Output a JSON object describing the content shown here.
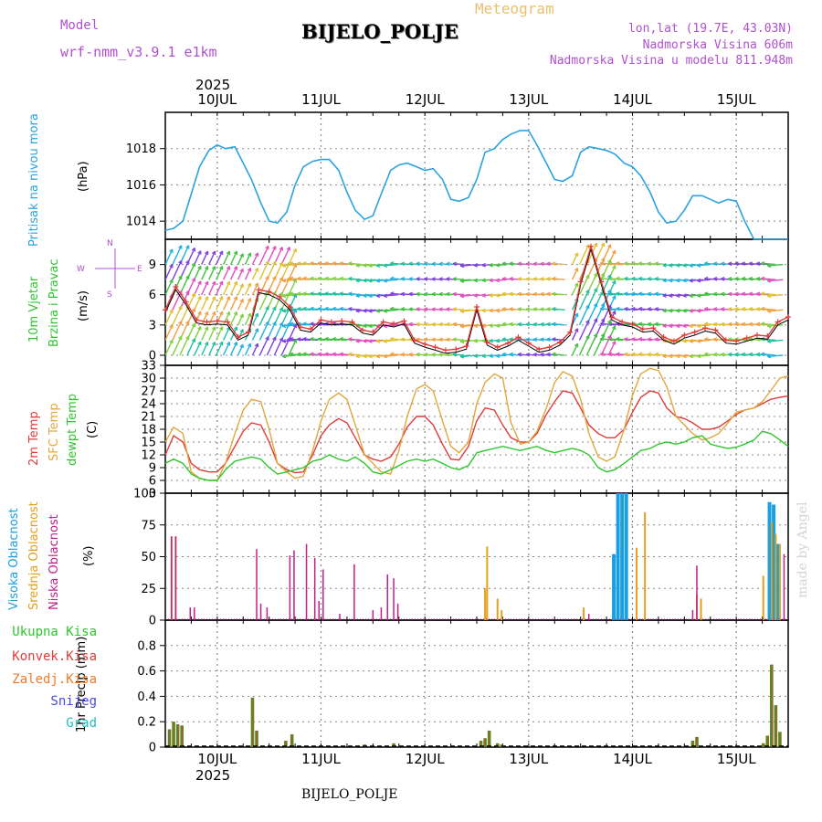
{
  "header": {
    "model_label": "Model",
    "model_name": "wrf-nmm_v3.9.1 e1km",
    "title": "BIJELO_POLJE",
    "meteogram": "Meteogram",
    "lonlat": "lon,lat (19.7E, 43.03N)",
    "altitude": "Nadmorska Visina 606m",
    "altitude_model": "Nadmorska Visina u modelu 811.948m",
    "footer": "BIJELO_POLJE",
    "watermark": "made by Angel"
  },
  "colors": {
    "pressure": "#2aa3e0",
    "wind_speed": "#e03c3c",
    "wind_black": "#000000",
    "t2m": "#e03c3c",
    "tsfc": "#e0a83c",
    "dewpt": "#2ec62e",
    "cloud_high": "#1aa0e0",
    "cloud_mid": "#e0a020",
    "cloud_low": "#c0208a",
    "precip_total": "#2ec62e",
    "precip_conv": "#e03c3c",
    "precip_frz": "#f07a2a",
    "precip_snow": "#4a4ae0",
    "precip_hail": "#20c0c0",
    "model_text": "#b050d0",
    "meteogram_text": "#e8c070",
    "grid": "#888888"
  },
  "chart_data": [
    {
      "type": "line",
      "panel": "pressure",
      "ylabel_lines": [
        "Pritisak na nivou mora",
        "(hPa)"
      ],
      "ylim": [
        1013,
        1020
      ],
      "yticks": [
        1014,
        1016,
        1018
      ],
      "x_days": [
        9.5,
        9.58,
        9.67,
        9.75,
        9.83,
        9.92,
        10.0,
        10.08,
        10.17,
        10.25,
        10.33,
        10.42,
        10.5,
        10.58,
        10.67,
        10.75,
        10.83,
        10.92,
        11.0,
        11.08,
        11.17,
        11.25,
        11.33,
        11.42,
        11.5,
        11.58,
        11.67,
        11.75,
        11.83,
        11.92,
        12.0,
        12.08,
        12.17,
        12.25,
        12.33,
        12.42,
        12.5,
        12.58,
        12.67,
        12.75,
        12.83,
        12.92,
        13.0,
        13.08,
        13.17,
        13.25,
        13.33,
        13.42,
        13.5,
        13.58,
        13.67,
        13.75,
        13.83,
        13.92,
        14.0,
        14.08,
        14.17,
        14.25,
        14.33,
        14.42,
        14.5,
        14.58,
        14.67,
        14.75,
        14.83,
        14.92,
        15.0,
        15.08,
        15.17,
        15.25,
        15.33,
        15.42,
        15.5
      ],
      "series": [
        {
          "values": [
            1013.5,
            1013.6,
            1014.0,
            1015.5,
            1017.0,
            1017.9,
            1018.2,
            1018.0,
            1018.1,
            1017.2,
            1016.3,
            1015.0,
            1014.0,
            1013.9,
            1014.5,
            1016.0,
            1017.0,
            1017.3,
            1017.4,
            1017.4,
            1016.8,
            1015.6,
            1014.6,
            1014.1,
            1014.3,
            1015.5,
            1016.8,
            1017.1,
            1017.2,
            1017.0,
            1016.8,
            1016.9,
            1016.3,
            1015.2,
            1015.1,
            1015.3,
            1016.3,
            1017.8,
            1018.0,
            1018.5,
            1018.8,
            1019.0,
            1019.0,
            1018.2,
            1017.2,
            1016.3,
            1016.2,
            1016.5,
            1017.8,
            1018.1,
            1018.0,
            1017.9,
            1017.7,
            1017.2,
            1017.0,
            1016.5,
            1015.6,
            1014.5,
            1013.9,
            1014.0,
            1014.6,
            1015.4,
            1015.4,
            1015.2,
            1015.0,
            1015.2,
            1015.1,
            1014.0,
            1013.0,
            1013.0,
            1013.0,
            1013.0,
            1013.0
          ]
        }
      ]
    },
    {
      "type": "line",
      "panel": "wind",
      "ylabel_lines": [
        "10m Vjetar",
        "Brzina i Pravac",
        "(m/s)"
      ],
      "compass": [
        "N",
        "E",
        "S",
        "W"
      ],
      "ylim": [
        -1,
        11.5
      ],
      "yticks": [
        0,
        3,
        6,
        9
      ],
      "x_days": [
        9.5,
        9.6,
        9.7,
        9.8,
        9.9,
        10.0,
        10.1,
        10.2,
        10.3,
        10.4,
        10.5,
        10.6,
        10.7,
        10.8,
        10.9,
        11.0,
        11.1,
        11.2,
        11.3,
        11.4,
        11.5,
        11.6,
        11.7,
        11.8,
        11.9,
        12.0,
        12.1,
        12.2,
        12.3,
        12.4,
        12.5,
        12.6,
        12.7,
        12.8,
        12.9,
        13.0,
        13.1,
        13.2,
        13.3,
        13.4,
        13.5,
        13.6,
        13.7,
        13.8,
        13.9,
        14.0,
        14.1,
        14.2,
        14.3,
        14.4,
        14.5,
        14.6,
        14.7,
        14.8,
        14.9,
        15.0,
        15.1,
        15.2,
        15.3,
        15.4,
        15.5
      ],
      "series": [
        {
          "name": "speed",
          "values": [
            4.2,
            6.5,
            5.0,
            3.2,
            3.0,
            3.1,
            3.0,
            1.5,
            2.0,
            6.2,
            6.0,
            5.5,
            4.5,
            2.5,
            2.3,
            3.2,
            3.0,
            3.1,
            3.0,
            2.2,
            2.0,
            3.0,
            2.8,
            3.1,
            1.2,
            0.8,
            0.5,
            0.2,
            0.3,
            0.6,
            4.5,
            1.0,
            0.5,
            0.9,
            1.5,
            0.9,
            0.3,
            0.5,
            1.0,
            2.0,
            7.0,
            10.5,
            7.0,
            3.5,
            3.0,
            2.8,
            2.3,
            2.4,
            1.5,
            1.1,
            1.7,
            2.0,
            2.4,
            2.2,
            1.2,
            1.1,
            1.4,
            1.7,
            1.6,
            3.0,
            3.5
          ]
        }
      ],
      "wind_rows": [
        9,
        7.5,
        6,
        4.5,
        3,
        1.5,
        0
      ]
    },
    {
      "type": "line",
      "panel": "temperature",
      "ylabel_lines": [
        "2m Temp",
        "SFC Temp",
        "dewpt Temp",
        "(C)"
      ],
      "ylim": [
        3,
        33
      ],
      "yticks": [
        3,
        6,
        9,
        12,
        15,
        18,
        21,
        24,
        27,
        30,
        33
      ],
      "x_days": [
        9.5,
        9.58,
        9.67,
        9.75,
        9.83,
        9.92,
        10.0,
        10.08,
        10.17,
        10.25,
        10.33,
        10.42,
        10.5,
        10.58,
        10.67,
        10.75,
        10.83,
        10.92,
        11.0,
        11.08,
        11.17,
        11.25,
        11.33,
        11.42,
        11.5,
        11.58,
        11.67,
        11.75,
        11.83,
        11.92,
        12.0,
        12.08,
        12.17,
        12.25,
        12.33,
        12.42,
        12.5,
        12.58,
        12.67,
        12.75,
        12.83,
        12.92,
        13.0,
        13.08,
        13.17,
        13.25,
        13.33,
        13.42,
        13.5,
        13.58,
        13.67,
        13.75,
        13.83,
        13.92,
        14.0,
        14.08,
        14.17,
        14.25,
        14.33,
        14.42,
        14.5,
        14.58,
        14.67,
        14.75,
        14.83,
        14.92,
        15.0,
        15.08,
        15.17,
        15.25,
        15.33,
        15.42,
        15.5
      ],
      "series": [
        {
          "name": "2m Temp",
          "values": [
            12,
            16.5,
            15,
            10,
            8.5,
            8,
            8,
            10,
            14,
            17.5,
            19.5,
            19,
            15,
            10,
            8.5,
            7.8,
            8,
            12,
            16.5,
            19,
            20.5,
            19.5,
            16,
            12,
            11,
            10.5,
            11.5,
            14.5,
            18.5,
            21,
            21,
            19,
            14.5,
            11,
            10.8,
            14,
            20,
            23,
            22.5,
            19,
            16,
            15,
            15,
            17,
            21.5,
            24.5,
            27,
            26.5,
            23,
            19,
            17,
            16,
            16,
            18,
            22,
            25.5,
            27,
            26.5,
            23,
            21,
            20.5,
            19.5,
            18,
            18,
            18.5,
            20,
            21.5,
            22.5,
            23,
            24,
            25,
            25.5,
            25.8
          ]
        },
        {
          "name": "SFC Temp",
          "values": [
            15,
            18.5,
            17,
            8,
            6.5,
            6,
            6,
            10,
            17,
            22.5,
            25,
            24.5,
            18,
            10,
            8,
            6.5,
            7,
            13,
            20,
            25,
            26.5,
            25,
            19,
            12,
            10,
            8,
            7.5,
            13,
            21,
            27.5,
            28.5,
            27,
            20,
            14,
            12.5,
            15,
            24,
            29,
            31,
            30,
            19.5,
            14.5,
            15,
            17.5,
            23,
            29,
            31.5,
            30.5,
            25,
            17,
            11.5,
            10.5,
            11.5,
            18,
            26,
            31,
            32.3,
            31.8,
            28,
            21,
            19,
            17,
            15.5,
            16,
            17,
            19.5,
            22,
            22.5,
            23,
            24.5,
            27,
            30,
            30.5
          ]
        },
        {
          "name": "dewpt Temp",
          "values": [
            10,
            11,
            10,
            7.5,
            6.5,
            6,
            6,
            8.5,
            10.5,
            11,
            11.5,
            11,
            9,
            7.5,
            8,
            8.5,
            9,
            10.5,
            11,
            12,
            11,
            10.5,
            11.5,
            10,
            8,
            7.5,
            8.5,
            9.5,
            10.5,
            11,
            10.5,
            11,
            10,
            9,
            8.5,
            9.5,
            12.5,
            13,
            13.5,
            14,
            13.5,
            13,
            13.5,
            14,
            13,
            12.5,
            13,
            13.5,
            13,
            12,
            9,
            8,
            8.5,
            10,
            11.5,
            13,
            13.5,
            14.5,
            15,
            14.5,
            15,
            16,
            16.5,
            14.5,
            14,
            13.5,
            13.8,
            14.5,
            15.5,
            17.5,
            17,
            15.5,
            14
          ]
        }
      ]
    },
    {
      "type": "bar",
      "panel": "clouds",
      "ylabel_lines": [
        "Visoka Oblacnost",
        "Srednja Oblacnost",
        "Niska Oblacnost",
        "(%)"
      ],
      "ylim": [
        0,
        100
      ],
      "yticks": [
        0,
        25,
        50,
        75,
        100
      ],
      "series": [
        {
          "name": "Visoka Oblacnost",
          "x_days": [
            13.82,
            13.86,
            13.9,
            13.94,
            15.32,
            15.36,
            15.4
          ],
          "values": [
            52,
            100,
            100,
            100,
            93,
            91,
            60
          ]
        },
        {
          "name": "Srednja Oblacnost",
          "x_days": [
            9.56,
            9.6,
            12.58,
            12.6,
            12.7,
            12.74,
            13.53,
            14.04,
            14.12,
            14.62,
            14.66,
            15.26,
            15.34,
            15.38,
            15.42
          ],
          "values": [
            66,
            66,
            25,
            58,
            17,
            8,
            10,
            57,
            85,
            20,
            17,
            35,
            77,
            68,
            60
          ]
        },
        {
          "name": "Niska Oblacnost",
          "x_days": [
            9.56,
            9.6,
            9.74,
            9.78,
            10.38,
            10.42,
            10.48,
            10.7,
            10.74,
            10.86,
            10.94,
            10.98,
            11.02,
            11.18,
            11.32,
            11.5,
            11.58,
            11.64,
            11.7,
            11.74,
            13.58,
            14.58,
            14.62,
            15.46
          ],
          "values": [
            66,
            66,
            10,
            10,
            56,
            13,
            10,
            51,
            55,
            60,
            49,
            15,
            40,
            5,
            44,
            8,
            10,
            36,
            33,
            13,
            5,
            8,
            43,
            52
          ]
        }
      ]
    },
    {
      "type": "bar",
      "panel": "precip",
      "ylabel_lines": [
        "1hr Precip (mm)"
      ],
      "legend": [
        "Ukupna Kisa",
        "Konvek.Kisa",
        "Zaledj.Kisa",
        "Snijeg",
        "Grad"
      ],
      "ylim": [
        0,
        1.0
      ],
      "yticks": [
        0,
        0.2,
        0.4,
        0.6,
        0.8
      ],
      "series": [
        {
          "name": "Ukupna Kisa",
          "x_days": [
            9.54,
            9.58,
            9.62,
            9.66,
            10.34,
            10.38,
            10.66,
            10.72,
            11.42,
            11.7,
            12.54,
            12.58,
            12.62,
            12.7,
            12.74,
            14.58,
            14.62,
            15.26,
            15.3,
            15.34,
            15.38,
            15.42
          ],
          "values": [
            0.14,
            0.2,
            0.18,
            0.17,
            0.39,
            0.13,
            0.05,
            0.1,
            0.02,
            0.03,
            0.05,
            0.07,
            0.13,
            0.03,
            0.02,
            0.05,
            0.08,
            0.03,
            0.09,
            0.65,
            0.33,
            0.12
          ]
        }
      ],
      "xticks": [
        "10JUL",
        "11JUL",
        "12JUL",
        "13JUL",
        "14JUL",
        "15JUL"
      ],
      "x_year": "2025"
    }
  ],
  "xaxis": {
    "ticks_top": [
      "10JUL",
      "11JUL",
      "12JUL",
      "13JUL",
      "14JUL",
      "15JUL"
    ],
    "year": "2025",
    "x_start": 9.5,
    "x_end": 15.5
  }
}
